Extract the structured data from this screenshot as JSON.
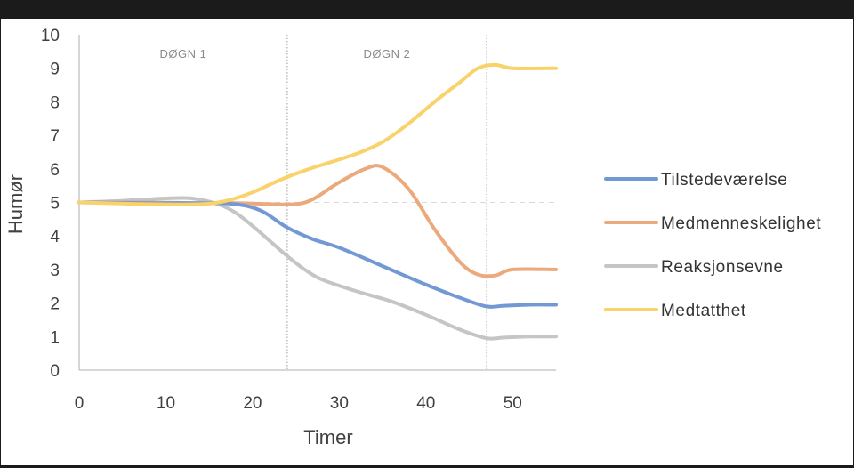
{
  "chart_data": {
    "type": "line",
    "title": "",
    "xlabel": "Timer",
    "ylabel": "Humør",
    "xlim": [
      0,
      55
    ],
    "ylim": [
      0,
      10
    ],
    "x_ticks": [
      "0",
      "10",
      "20",
      "30",
      "40",
      "50"
    ],
    "y_ticks": [
      "0",
      "1",
      "2",
      "3",
      "4",
      "5",
      "6",
      "7",
      "8",
      "9",
      "10"
    ],
    "grid": false,
    "legend_position": "right",
    "period_labels": [
      {
        "label": "DØGN 1",
        "x": 12
      },
      {
        "label": "DØGN 2",
        "x": 35.5
      }
    ],
    "period_dividers": [
      24,
      47
    ],
    "reference_line": 5,
    "series": [
      {
        "name": "Tilstedeværelse",
        "color": "#7399d4",
        "points": [
          [
            0,
            5
          ],
          [
            8,
            4.98
          ],
          [
            14,
            4.98
          ],
          [
            18,
            4.95
          ],
          [
            21,
            4.75
          ],
          [
            24,
            4.25
          ],
          [
            27,
            3.9
          ],
          [
            30,
            3.65
          ],
          [
            35,
            3.1
          ],
          [
            40,
            2.55
          ],
          [
            44,
            2.15
          ],
          [
            47,
            1.9
          ],
          [
            49,
            1.92
          ],
          [
            52,
            1.95
          ],
          [
            55,
            1.95
          ]
        ]
      },
      {
        "name": "Medmenneskelighet",
        "color": "#eba97c",
        "points": [
          [
            0,
            5
          ],
          [
            8,
            5
          ],
          [
            14,
            4.98
          ],
          [
            18,
            4.98
          ],
          [
            22,
            4.95
          ],
          [
            25,
            4.95
          ],
          [
            27,
            5.1
          ],
          [
            30,
            5.6
          ],
          [
            33,
            6
          ],
          [
            35,
            6.05
          ],
          [
            38,
            5.4
          ],
          [
            41,
            4.2
          ],
          [
            44,
            3.2
          ],
          [
            46,
            2.85
          ],
          [
            48,
            2.82
          ],
          [
            50,
            3
          ],
          [
            55,
            3
          ]
        ]
      },
      {
        "name": "Reaksjonsevne",
        "color": "#c5c5c5",
        "points": [
          [
            0,
            5
          ],
          [
            5,
            5.05
          ],
          [
            10,
            5.12
          ],
          [
            13,
            5.12
          ],
          [
            16,
            4.95
          ],
          [
            18,
            4.7
          ],
          [
            20,
            4.3
          ],
          [
            22,
            3.85
          ],
          [
            24,
            3.4
          ],
          [
            26,
            3
          ],
          [
            28,
            2.7
          ],
          [
            32,
            2.35
          ],
          [
            36,
            2.05
          ],
          [
            40,
            1.65
          ],
          [
            44,
            1.2
          ],
          [
            47,
            0.95
          ],
          [
            49,
            0.97
          ],
          [
            52,
            1
          ],
          [
            55,
            1
          ]
        ]
      },
      {
        "name": "Medtatthet",
        "color": "#f9d26a",
        "points": [
          [
            0,
            5
          ],
          [
            8,
            4.95
          ],
          [
            14,
            4.95
          ],
          [
            17,
            5.05
          ],
          [
            20,
            5.3
          ],
          [
            23,
            5.65
          ],
          [
            26,
            5.95
          ],
          [
            29,
            6.2
          ],
          [
            32,
            6.45
          ],
          [
            35,
            6.8
          ],
          [
            38,
            7.35
          ],
          [
            41,
            8
          ],
          [
            44,
            8.6
          ],
          [
            46,
            9
          ],
          [
            48,
            9.1
          ],
          [
            50,
            9
          ],
          [
            55,
            9
          ]
        ]
      }
    ]
  }
}
